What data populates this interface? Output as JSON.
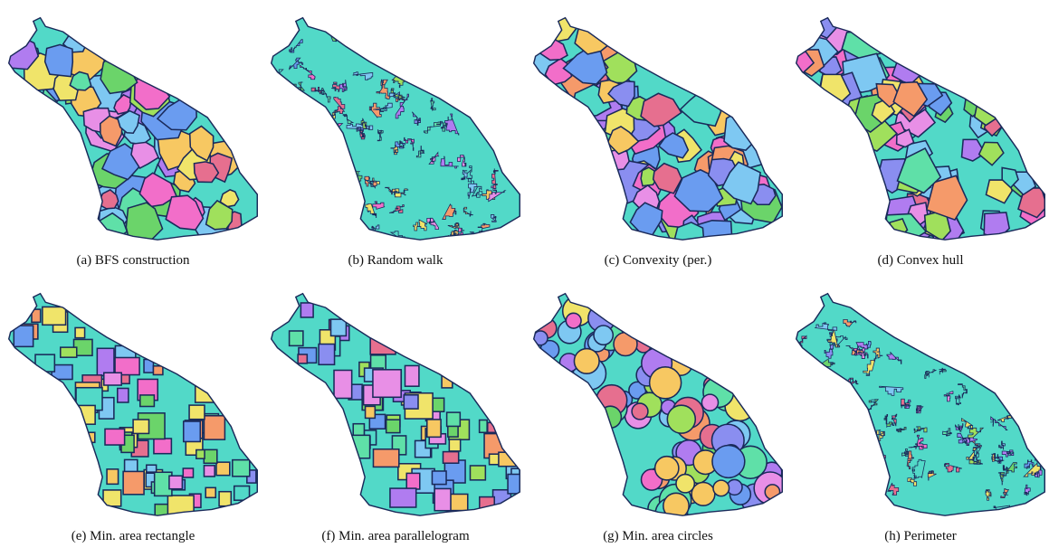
{
  "panels": [
    {
      "caption": "(a)  BFS construction",
      "style": "smooth"
    },
    {
      "caption": "(b)  Random walk",
      "style": "jagged"
    },
    {
      "caption": "(c)  Convexity (per.)",
      "style": "smooth"
    },
    {
      "caption": "(d)  Convex hull",
      "style": "polygon"
    },
    {
      "caption": "(e)  Min. area rectangle",
      "style": "rect"
    },
    {
      "caption": "(f)  Min. area parallelogram",
      "style": "rect"
    },
    {
      "caption": "(g)  Min. area circles",
      "style": "circle"
    },
    {
      "caption": "(h)  Perimeter",
      "style": "jagged"
    }
  ],
  "palette": [
    "#6bd46a",
    "#f26ec9",
    "#52d9c8",
    "#8a8ef0",
    "#f0e46a",
    "#f59a6a",
    "#e66f8f",
    "#7ec8f2",
    "#b07cf0",
    "#a0e05c",
    "#5fe0a8",
    "#e88fe6",
    "#f7c862",
    "#6a9cf0"
  ],
  "outline_color": "#1a2a5a"
}
